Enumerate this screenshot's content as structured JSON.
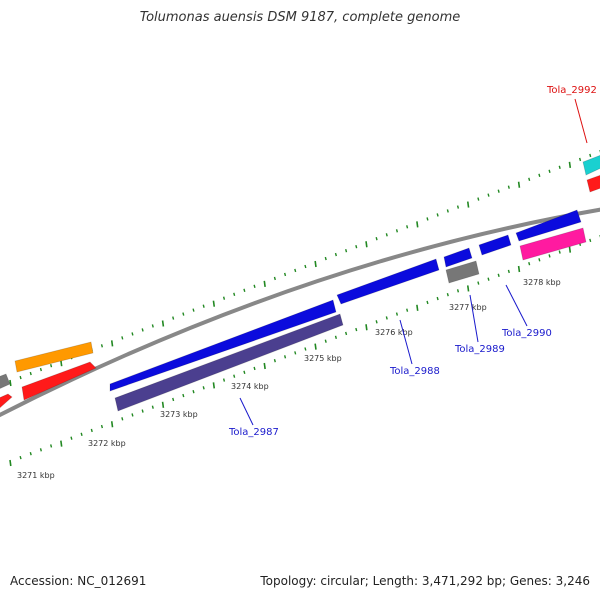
{
  "title": "Tolumonas auensis DSM 9187, complete genome",
  "footer": {
    "accession": "Accession: NC_012691",
    "topology": "Topology: circular; Length: 3,471,292 bp; Genes: 3,246"
  },
  "colors": {
    "backbone": "#888888",
    "ticks": "#228822",
    "label_blue": "#1a1acc",
    "label_red": "#dd1111"
  },
  "kbp_ticks": [
    {
      "label": "3271 kbp"
    },
    {
      "label": "3272 kbp"
    },
    {
      "label": "3273 kbp"
    },
    {
      "label": "3274 kbp"
    },
    {
      "label": "3275 kbp"
    },
    {
      "label": "3276 kbp"
    },
    {
      "label": "3277 kbp"
    },
    {
      "label": "3278 kbp"
    }
  ],
  "gene_labels": [
    {
      "id": "gene-label-tola-2987",
      "text": "Tola_2987",
      "color": "#1a1acc"
    },
    {
      "id": "gene-label-tola-2988",
      "text": "Tola_2988",
      "color": "#1a1acc"
    },
    {
      "id": "gene-label-tola-2989",
      "text": "Tola_2989",
      "color": "#1a1acc"
    },
    {
      "id": "gene-label-tola-2990",
      "text": "Tola_2990",
      "color": "#1a1acc"
    },
    {
      "id": "gene-label-tola-2992",
      "text": "Tola_2992",
      "color": "#dd1111"
    }
  ],
  "genes": [
    {
      "id": "gene-red-left-a",
      "color": "#ff1a1a"
    },
    {
      "id": "gene-gray-left",
      "color": "#777777"
    },
    {
      "id": "gene-orange",
      "color": "#ff9900"
    },
    {
      "id": "gene-red-left-b",
      "color": "#ff1a1a"
    },
    {
      "id": "gene-tola-2987-purple",
      "color": "#4b3f8f"
    },
    {
      "id": "gene-tola-2988-blue",
      "color": "#0b0bdd"
    },
    {
      "id": "gene-tola-2988-blue-b",
      "color": "#0b0bdd"
    },
    {
      "id": "gene-tola-2989-blue",
      "color": "#0b0bdd"
    },
    {
      "id": "gene-tola-2989-gray",
      "color": "#777777"
    },
    {
      "id": "gene-tola-2990-blue",
      "color": "#0b0bdd"
    },
    {
      "id": "gene-blue-right",
      "color": "#0b0bdd"
    },
    {
      "id": "gene-magenta",
      "color": "#ff1aa0"
    },
    {
      "id": "gene-cyan-tola-2992",
      "color": "#1ad0d0"
    },
    {
      "id": "gene-red-right",
      "color": "#ff1a1a"
    }
  ]
}
